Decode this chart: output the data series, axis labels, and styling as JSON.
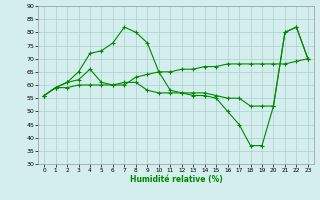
{
  "xlabel": "Humidité relative (%)",
  "background_color": "#d4eeed",
  "grid_color": "#aacfcf",
  "line_color": "#008800",
  "marker": "+",
  "markersize": 3,
  "linewidth": 0.8,
  "ylim": [
    30,
    90
  ],
  "yticks": [
    30,
    35,
    40,
    45,
    50,
    55,
    60,
    65,
    70,
    75,
    80,
    85,
    90
  ],
  "xlim": [
    -0.5,
    23.5
  ],
  "xticks": [
    0,
    1,
    2,
    3,
    4,
    5,
    6,
    7,
    8,
    9,
    10,
    11,
    12,
    13,
    14,
    15,
    16,
    17,
    18,
    19,
    20,
    21,
    22,
    23
  ],
  "series1": [
    56,
    59,
    61,
    62,
    66,
    61,
    60,
    61,
    61,
    58,
    57,
    57,
    57,
    57,
    57,
    56,
    55,
    55,
    52,
    52,
    52,
    80,
    82,
    70
  ],
  "series2": [
    56,
    59,
    61,
    65,
    72,
    73,
    76,
    82,
    80,
    76,
    65,
    58,
    57,
    56,
    56,
    55,
    50,
    45,
    37,
    37,
    52,
    80,
    82,
    70
  ],
  "series3": [
    56,
    59,
    59,
    60,
    60,
    60,
    60,
    60,
    63,
    64,
    65,
    65,
    66,
    66,
    67,
    67,
    68,
    68,
    68,
    68,
    68,
    68,
    69,
    70
  ]
}
